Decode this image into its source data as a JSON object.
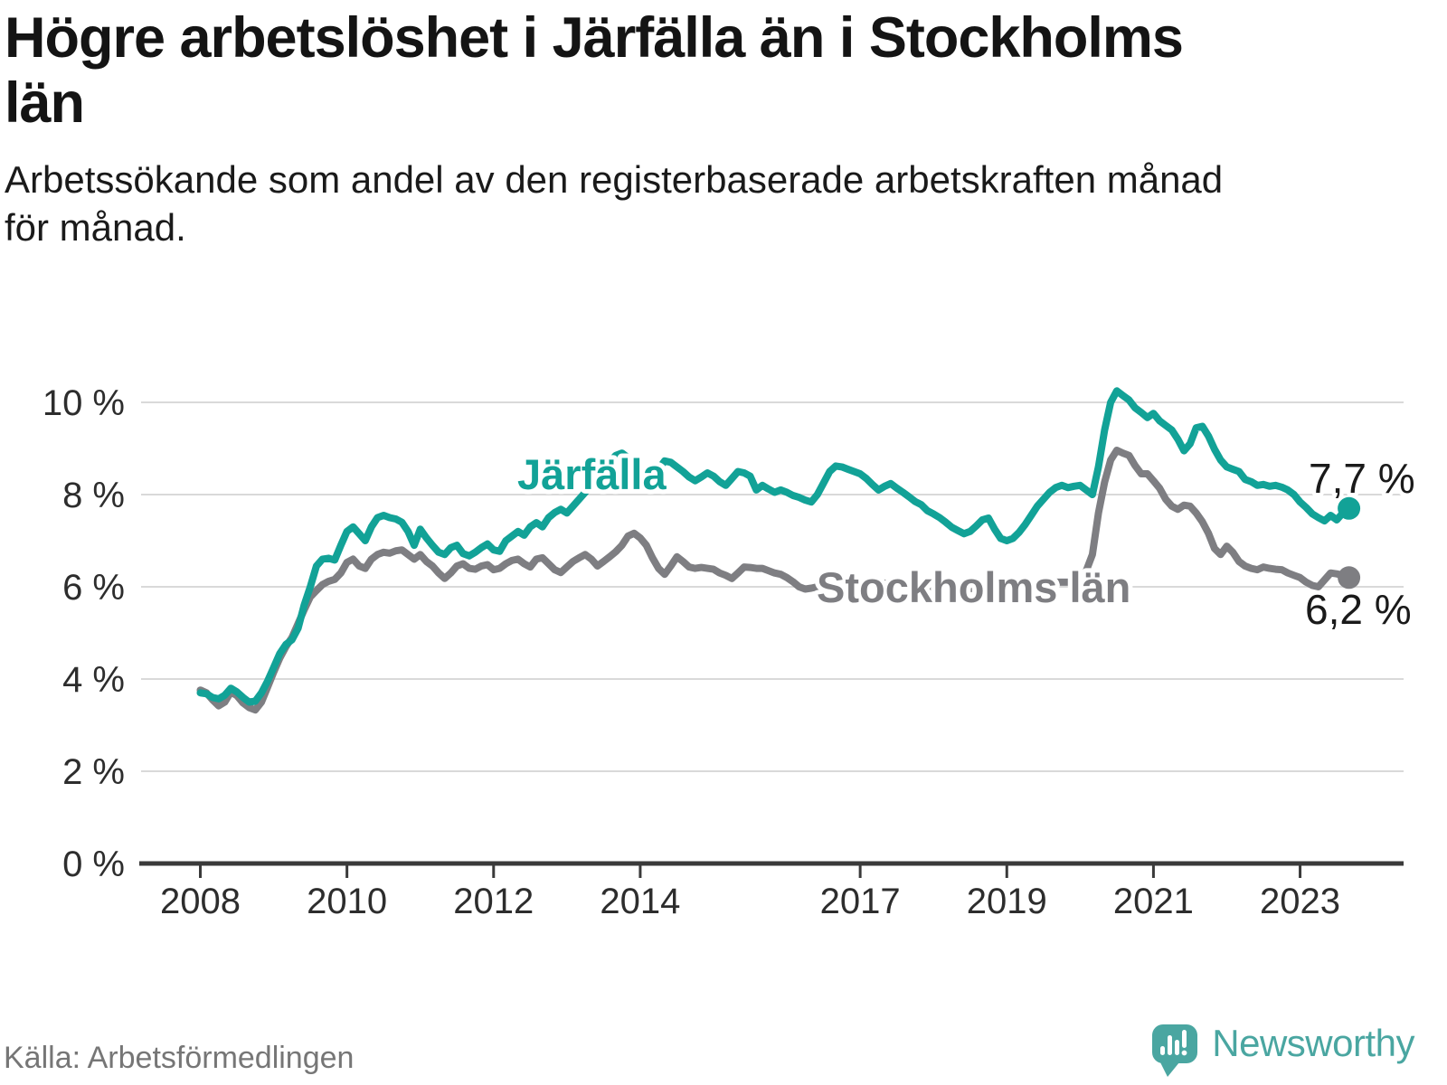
{
  "header": {
    "title_lines": [
      "Högre arbetslöshet i Järfälla än i Stockholms",
      "län"
    ],
    "subtitle_lines": [
      "Arbetssökande som andel av den registerbaserade arbetskraften månad",
      "för månad."
    ]
  },
  "footer": {
    "source": "Källa: Arbetsförmedlingen",
    "brand": "Newsworthy"
  },
  "colors": {
    "jarfalla": "#12a297",
    "stockholm": "#7e7e82",
    "gridline": "#d9d9d9",
    "axis": "#3a3a3a",
    "tick_text": "#2d2d2d",
    "annotation_text": "#1a1a1a",
    "logo_teal": "#4aa6a1"
  },
  "chart_data": {
    "type": "line",
    "title": "Högre arbetslöshet i Järfälla än i Stockholms län",
    "subtitle": "Arbetssökande som andel av den registerbaserade arbetskraften månad för månad.",
    "unit": "%",
    "x_start": "2008-01",
    "x_end": "2023-09",
    "points_per_year": 12,
    "grid": true,
    "legend_position": "inline-labels",
    "ylim": [
      0,
      10.5
    ],
    "y_ticks": [
      0,
      2,
      4,
      6,
      8,
      10
    ],
    "y_tick_labels": [
      "0 %",
      "2 %",
      "4 %",
      "6 %",
      "8 %",
      "10 %"
    ],
    "x_tick_years": [
      2008,
      2010,
      2012,
      2014,
      2017,
      2019,
      2021,
      2023
    ],
    "x_tick_labels": [
      "2008",
      "2010",
      "2012",
      "2014",
      "2017",
      "2019",
      "2021",
      "2023"
    ],
    "series": [
      {
        "name": "Stockholms län",
        "color": "#7e7e82",
        "end_label": "6,2 %",
        "end_value": 6.2,
        "values": [
          3.76,
          3.7,
          3.55,
          3.42,
          3.5,
          3.72,
          3.64,
          3.48,
          3.38,
          3.33,
          3.5,
          3.82,
          4.15,
          4.45,
          4.7,
          4.9,
          5.2,
          5.5,
          5.78,
          5.92,
          6.05,
          6.12,
          6.16,
          6.3,
          6.53,
          6.6,
          6.45,
          6.4,
          6.6,
          6.7,
          6.75,
          6.73,
          6.78,
          6.8,
          6.7,
          6.6,
          6.7,
          6.55,
          6.45,
          6.3,
          6.18,
          6.3,
          6.45,
          6.5,
          6.4,
          6.38,
          6.45,
          6.48,
          6.37,
          6.4,
          6.5,
          6.57,
          6.6,
          6.5,
          6.43,
          6.6,
          6.63,
          6.5,
          6.37,
          6.31,
          6.43,
          6.55,
          6.63,
          6.7,
          6.6,
          6.45,
          6.55,
          6.65,
          6.76,
          6.9,
          7.1,
          7.16,
          7.06,
          6.9,
          6.63,
          6.4,
          6.27,
          6.45,
          6.65,
          6.55,
          6.43,
          6.4,
          6.42,
          6.4,
          6.38,
          6.3,
          6.25,
          6.18,
          6.3,
          6.43,
          6.42,
          6.4,
          6.4,
          6.35,
          6.3,
          6.27,
          6.2,
          6.11,
          6.0,
          5.95,
          5.97,
          6.0,
          6.0,
          6.0,
          6.0,
          6.02,
          6.04,
          6.05,
          6.05,
          6.06,
          6.08,
          6.08,
          6.08,
          6.06,
          6.05,
          6.04,
          6.02,
          6.0,
          6.0,
          6.0,
          6.0,
          5.98,
          5.97,
          5.96,
          5.95,
          5.95,
          5.96,
          5.97,
          5.98,
          5.98,
          5.97,
          5.96,
          5.95,
          5.95,
          5.97,
          6.0,
          6.02,
          6.05,
          6.07,
          6.08,
          6.1,
          6.1,
          6.1,
          6.12,
          6.15,
          6.35,
          6.7,
          7.6,
          8.27,
          8.75,
          8.96,
          8.9,
          8.85,
          8.63,
          8.45,
          8.45,
          8.3,
          8.14,
          7.9,
          7.75,
          7.68,
          7.77,
          7.75,
          7.6,
          7.41,
          7.16,
          6.83,
          6.7,
          6.88,
          6.75,
          6.55,
          6.45,
          6.4,
          6.37,
          6.43,
          6.4,
          6.38,
          6.37,
          6.3,
          6.25,
          6.2,
          6.1,
          6.03,
          6.0,
          6.15,
          6.3,
          6.28,
          6.25,
          6.2
        ]
      },
      {
        "name": "Järfälla",
        "color": "#12a297",
        "end_label": "7,7 %",
        "end_value": 7.7,
        "values": [
          3.7,
          3.68,
          3.6,
          3.57,
          3.65,
          3.8,
          3.72,
          3.6,
          3.5,
          3.52,
          3.7,
          3.95,
          4.25,
          4.55,
          4.75,
          4.85,
          5.1,
          5.6,
          6.0,
          6.45,
          6.6,
          6.62,
          6.58,
          6.9,
          7.2,
          7.3,
          7.15,
          7.0,
          7.3,
          7.5,
          7.55,
          7.5,
          7.47,
          7.4,
          7.2,
          6.9,
          7.25,
          7.06,
          6.9,
          6.75,
          6.7,
          6.85,
          6.9,
          6.72,
          6.67,
          6.75,
          6.85,
          6.93,
          6.8,
          6.77,
          7.0,
          7.1,
          7.2,
          7.12,
          7.3,
          7.39,
          7.3,
          7.5,
          7.61,
          7.68,
          7.6,
          7.75,
          7.9,
          8.05,
          8.2,
          8.35,
          8.5,
          8.7,
          8.85,
          8.9,
          8.8,
          8.65,
          8.5,
          8.45,
          8.43,
          8.55,
          8.73,
          8.7,
          8.6,
          8.5,
          8.38,
          8.3,
          8.38,
          8.47,
          8.4,
          8.28,
          8.2,
          8.35,
          8.5,
          8.47,
          8.4,
          8.1,
          8.2,
          8.12,
          8.05,
          8.1,
          8.05,
          7.98,
          7.94,
          7.88,
          7.84,
          8.0,
          8.25,
          8.5,
          8.62,
          8.6,
          8.55,
          8.5,
          8.45,
          8.35,
          8.22,
          8.1,
          8.18,
          8.24,
          8.14,
          8.05,
          7.95,
          7.85,
          7.78,
          7.65,
          7.58,
          7.5,
          7.4,
          7.29,
          7.22,
          7.15,
          7.2,
          7.32,
          7.45,
          7.49,
          7.25,
          7.05,
          7.0,
          7.05,
          7.18,
          7.35,
          7.55,
          7.75,
          7.9,
          8.05,
          8.15,
          8.2,
          8.15,
          8.18,
          8.2,
          8.1,
          8.0,
          8.6,
          9.4,
          10.0,
          10.25,
          10.15,
          10.05,
          9.88,
          9.78,
          9.67,
          9.76,
          9.6,
          9.5,
          9.4,
          9.2,
          8.95,
          9.1,
          9.45,
          9.48,
          9.27,
          8.98,
          8.75,
          8.6,
          8.55,
          8.5,
          8.33,
          8.28,
          8.2,
          8.22,
          8.18,
          8.2,
          8.16,
          8.1,
          8.0,
          7.84,
          7.72,
          7.58,
          7.5,
          7.43,
          7.55,
          7.45,
          7.6,
          7.7
        ]
      }
    ]
  }
}
